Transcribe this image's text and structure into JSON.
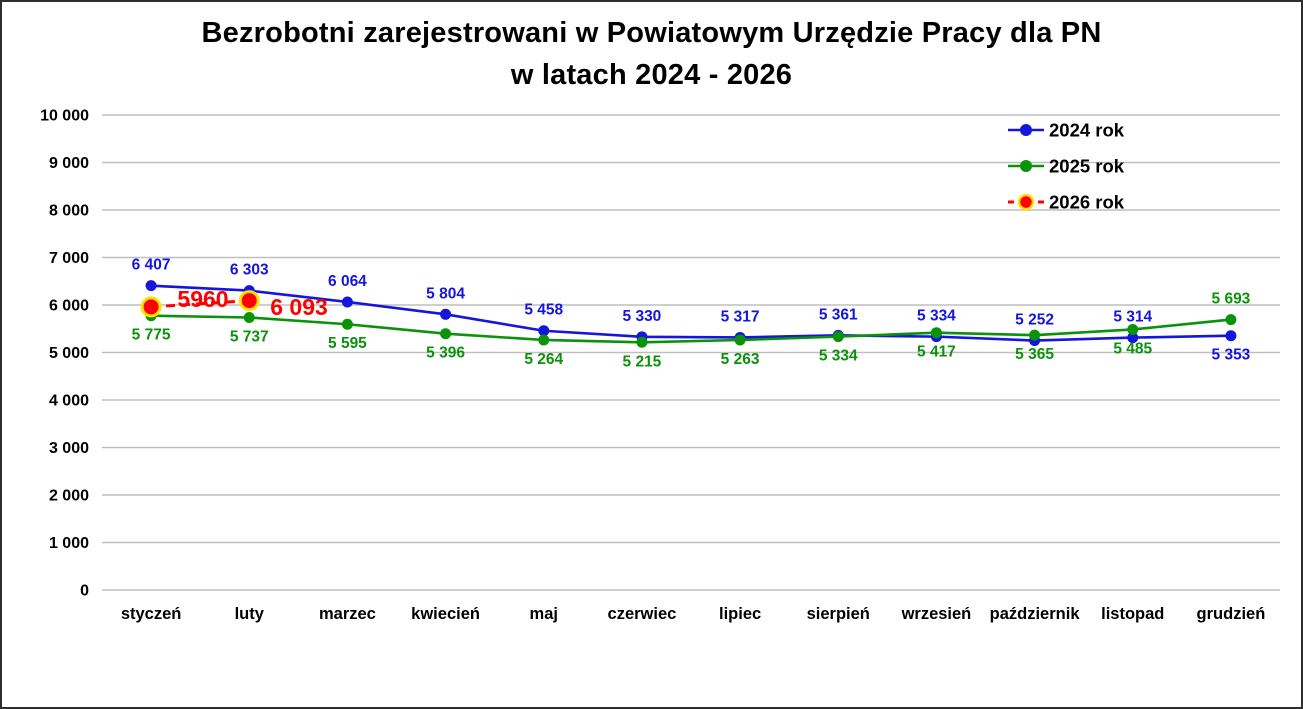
{
  "chart_data": {
    "type": "line",
    "title": "Bezrobotni zarejestrowani w Powiatowym Urzędzie Pracy dla PN w latach 2024 - 2026",
    "title_line1": "Bezrobotni zarejestrowani w Powiatowym Urzędzie Pracy dla PN",
    "title_line2": "w latach 2024 - 2026",
    "xlabel": "",
    "ylabel": "",
    "ylim": [
      0,
      10000
    ],
    "grid": "horizontal",
    "gridline_color": "#bfbfbf",
    "legend_position": "top-right",
    "categories": [
      "styczeń",
      "luty",
      "marzec",
      "kwiecień",
      "maj",
      "czerwiec",
      "lipiec",
      "sierpień",
      "wrzesień",
      "październik",
      "listopad",
      "grudzień"
    ],
    "yticks": {
      "values": [
        0,
        1000,
        2000,
        3000,
        4000,
        5000,
        6000,
        7000,
        8000,
        9000,
        10000
      ],
      "labels": [
        "0",
        "1 000",
        "2 000",
        "3 000",
        "4 000",
        "5 000",
        "6 000",
        "7 000",
        "8 000",
        "9 000",
        "10 000"
      ]
    },
    "series": [
      {
        "name": "2024 rok",
        "color": "#1515dd",
        "marker_r": 5.5,
        "line_width": 2.6,
        "values": [
          6407,
          6303,
          6064,
          5804,
          5458,
          5330,
          5317,
          5361,
          5334,
          5252,
          5314,
          5353
        ],
        "labels": [
          "6 407",
          "6 303",
          "6 064",
          "5 804",
          "5 458",
          "5 330",
          "5 317",
          "5 361",
          "5 334",
          "5 252",
          "5 314",
          "5 353"
        ],
        "label_side": [
          "above",
          "above",
          "above",
          "above",
          "above",
          "above",
          "above",
          "above",
          "above",
          "above",
          "above",
          "below"
        ]
      },
      {
        "name": "2025 rok",
        "color": "#0a930a",
        "marker_r": 5.5,
        "line_width": 2.6,
        "values": [
          5775,
          5737,
          5595,
          5396,
          5264,
          5215,
          5263,
          5334,
          5417,
          5365,
          5485,
          5693
        ],
        "labels": [
          "5 775",
          "5 737",
          "5 595",
          "5 396",
          "5 264",
          "5 215",
          "5 263",
          "5 334",
          "5 417",
          "5 365",
          "5 485",
          "5 693"
        ],
        "label_side": [
          "below",
          "below",
          "below",
          "below",
          "below",
          "below",
          "below",
          "below",
          "below",
          "below",
          "below",
          "above"
        ]
      },
      {
        "name": "2026 rok",
        "color": "#ff0000",
        "marker_r": 9,
        "marker_ring": "#ffe000",
        "marker_ring_width": 3,
        "line_width": 3,
        "dash": "9 6",
        "values": [
          5960,
          6093,
          null,
          null,
          null,
          null,
          null,
          null,
          null,
          null,
          null,
          null
        ],
        "labels": [
          "5960",
          "6 093",
          null,
          null,
          null,
          null,
          null,
          null,
          null,
          null,
          null,
          null
        ],
        "label_positions": [
          {
            "x": 201,
            "y": 305
          },
          {
            "x": 297,
            "y": 313
          }
        ]
      }
    ]
  }
}
